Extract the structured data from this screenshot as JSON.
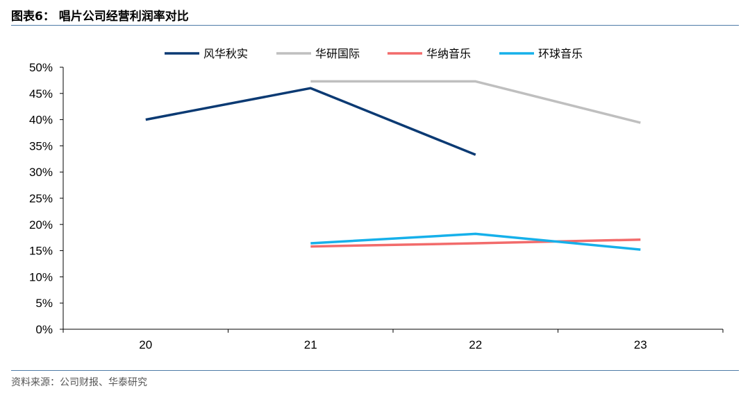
{
  "figure": {
    "title": "图表6： 唱片公司经营利润率对比",
    "source": "资料来源：公司财报、华泰研究"
  },
  "chart_data": {
    "type": "line",
    "title": "",
    "xlabel": "",
    "ylabel": "",
    "categories": [
      "20",
      "21",
      "22",
      "23"
    ],
    "ylim": [
      0,
      50
    ],
    "ytick_step": 5,
    "y_tick_labels": [
      "0%",
      "5%",
      "10%",
      "15%",
      "20%",
      "25%",
      "30%",
      "35%",
      "40%",
      "45%",
      "50%"
    ],
    "grid": false,
    "legend_position": "top",
    "series": [
      {
        "name": "风华秋实",
        "color": "#0b3a73",
        "values": [
          40.0,
          46.0,
          33.3,
          null
        ]
      },
      {
        "name": "华研国际",
        "color": "#bfbfbf",
        "values": [
          null,
          47.3,
          47.3,
          39.4
        ]
      },
      {
        "name": "华纳音乐",
        "color": "#f26b6b",
        "values": [
          null,
          15.8,
          16.4,
          17.1
        ]
      },
      {
        "name": "环球音乐",
        "color": "#16b0ea",
        "values": [
          null,
          16.4,
          18.2,
          15.2
        ]
      }
    ]
  }
}
